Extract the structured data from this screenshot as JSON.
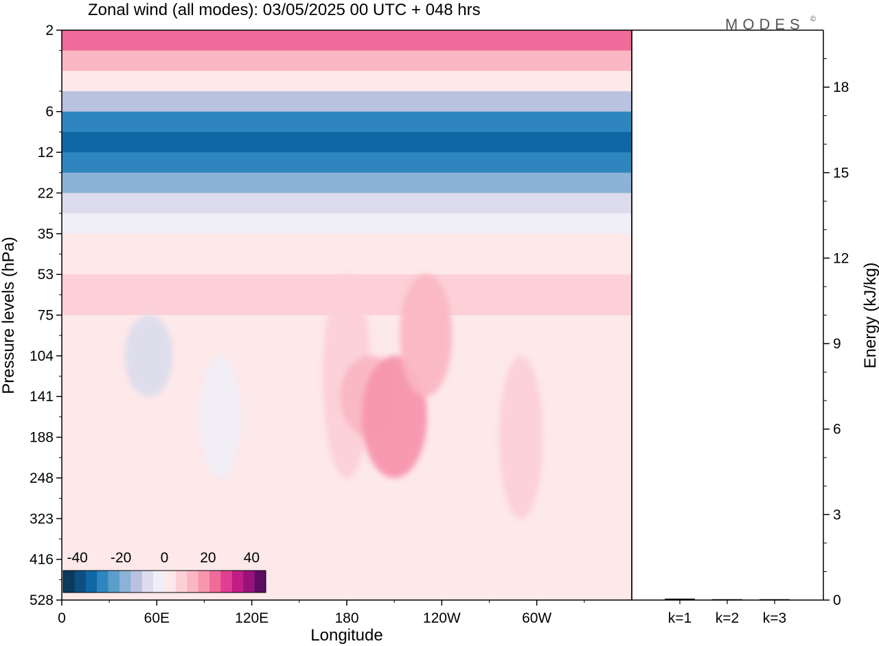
{
  "logo": {
    "text": "MODES",
    "mark": "©"
  },
  "chart_data": [
    {
      "type": "heatmap",
      "title": "Zonal wind (all modes):  03/05/2025  00 UTC  + 048 hrs",
      "xlabel": "Longitude",
      "ylabel": "Pressure levels (hPa)",
      "x_ticks": [
        "0",
        "60E",
        "120E",
        "180",
        "120W",
        "60W"
      ],
      "y_ticks": [
        "2",
        "6",
        "12",
        "22",
        "35",
        "53",
        "75",
        "104",
        "141",
        "188",
        "248",
        "323",
        "416",
        "528"
      ],
      "y_scale": "level-index (top 2 hPa to bottom 528 hPa)",
      "colorbar": {
        "position": "bottom-left (inset)",
        "tick_labels": [
          "-40",
          "-20",
          "0",
          "20",
          "40"
        ],
        "colors": [
          "#0b3a5a",
          "#0d4f80",
          "#0f67a3",
          "#2f86bf",
          "#5a9fcb",
          "#8cb2d5",
          "#b9c3df",
          "#dcdcec",
          "#f0eef6",
          "#fde8ea",
          "#fcd0d6",
          "#fab7c3",
          "#f796ad",
          "#f06a9a",
          "#e03f92",
          "#c01e85",
          "#98127a",
          "#5e0c63"
        ]
      },
      "field_bands": [
        {
          "level": "2",
          "value": 20
        },
        {
          "level": "3",
          "value": 10
        },
        {
          "level": "4",
          "value": 0
        },
        {
          "level": "5",
          "value": -15
        },
        {
          "level": "6",
          "value": -30
        },
        {
          "level": "9",
          "value": -32
        },
        {
          "level": "12",
          "value": -26
        },
        {
          "level": "16",
          "value": -20
        },
        {
          "level": "22",
          "value": -10
        },
        {
          "level": "28",
          "value": -3
        },
        {
          "level": "35",
          "value": 2
        },
        {
          "level": "53",
          "value": 6
        },
        {
          "level": "75",
          "value": 4
        },
        {
          "level": "104",
          "value": 2
        },
        {
          "level": "141",
          "value": 2
        },
        {
          "level": "188",
          "value": 1
        },
        {
          "level": "323",
          "value": 0
        },
        {
          "level": "528",
          "value": 0
        }
      ],
      "features": [
        {
          "name": "easterly-pocket-60E",
          "lon": 55,
          "level_range": [
            "75",
            "141"
          ],
          "value": -8
        },
        {
          "name": "easterly-streak-100E",
          "lon": 100,
          "level_range": [
            "104",
            "248"
          ],
          "value": -5
        },
        {
          "name": "westerly-core-180",
          "lon": 180,
          "level_range": [
            "53",
            "248"
          ],
          "value": 8
        },
        {
          "name": "westerly-max-160W",
          "lon": 195,
          "level_range": [
            "104",
            "188"
          ],
          "value": 14
        },
        {
          "name": "westerly-max-150W",
          "lon": 210,
          "level_range": [
            "104",
            "248"
          ],
          "value": 16
        },
        {
          "name": "westerly-130W",
          "lon": 230,
          "level_range": [
            "53",
            "141"
          ],
          "value": 10
        },
        {
          "name": "westerly-70W",
          "lon": 290,
          "level_range": [
            "104",
            "323"
          ],
          "value": 6
        }
      ]
    },
    {
      "type": "bar",
      "ylabel": "Energy (kJ/kg)",
      "categories": [
        "k=1",
        "k=2",
        "k=3"
      ],
      "values": [
        0.05,
        0.03,
        0.03
      ],
      "ylim": [
        0,
        20
      ],
      "y_ticks": [
        "0",
        "3",
        "6",
        "9",
        "12",
        "15",
        "18"
      ]
    }
  ]
}
